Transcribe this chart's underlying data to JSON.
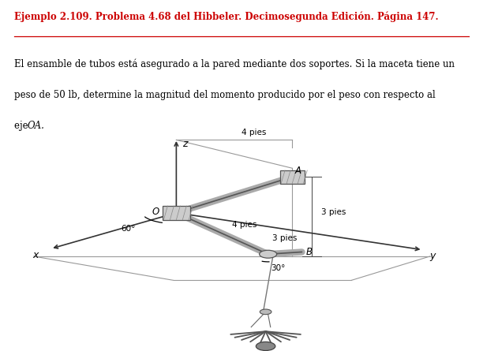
{
  "title_line1": "Ejemplo 2.109. Problema 4.68 del Hibbeler. Decimosegunda Edición. Página 147.",
  "body1": "El ensamble de tubos está asegurado a la pared mediante dos soportes. Si la maceta tiene un",
  "body2": "peso de 50 lb, determine la magnitud del momento producido por el peso con respecto al",
  "body3_pre": "eje ",
  "body3_italic": "OA",
  "body3_post": ".",
  "bg_color": "#ffffff",
  "text_color": "#000000",
  "title_color": "#cc0000",
  "fig_width": 6.12,
  "fig_height": 4.45,
  "dpi": 100,
  "plane_color": "#999999",
  "tube_color": "#aaaaaa",
  "tube_edge_color": "#555555",
  "line_color": "#333333",
  "dim_color": "#444444",
  "bracket_face": "#cccccc",
  "bracket_edge": "#555555"
}
